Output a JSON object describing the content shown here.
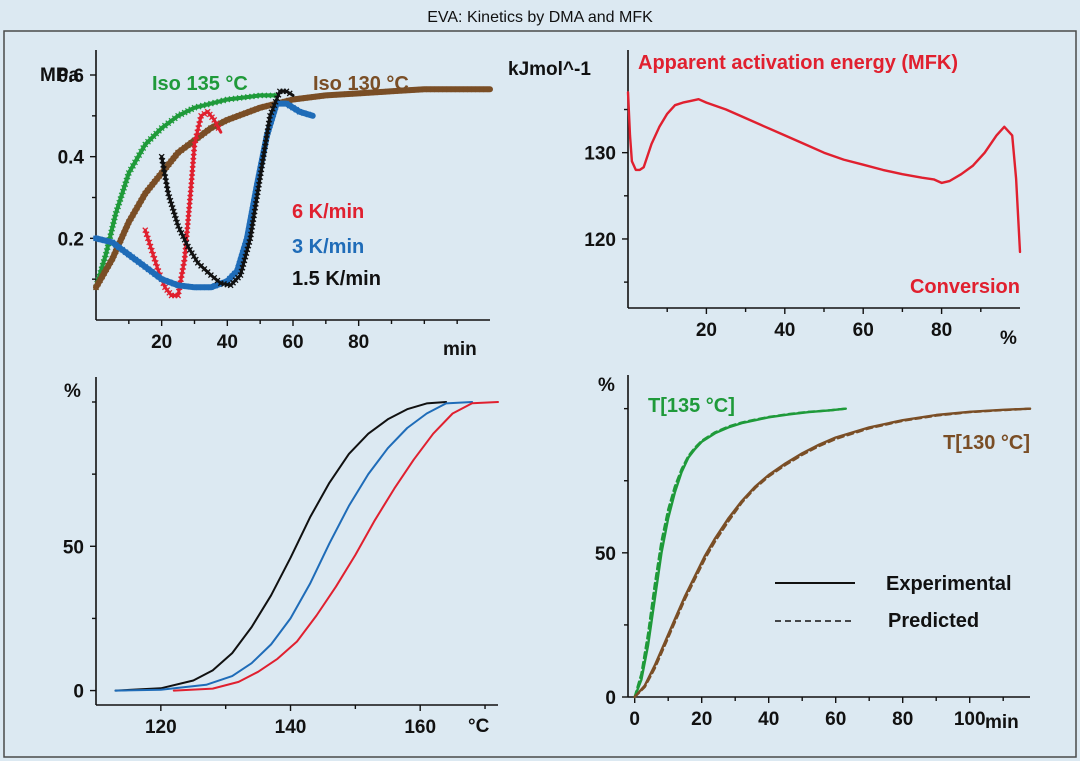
{
  "figure_title": "EVA: Kinetics by DMA and MFK",
  "colors": {
    "background": "#dce9f2",
    "frame": "#4a4a4a",
    "red": "#e0202f",
    "blue": "#1f6cb8",
    "black": "#111111",
    "green": "#1f9a3a",
    "brown": "#7a4e26"
  },
  "chart_data": [
    {
      "id": "dma",
      "type": "scatter",
      "xlabel": "min",
      "ylabel": "MPa",
      "xlim": [
        0,
        120
      ],
      "ylim": [
        0,
        0.6
      ],
      "xticks": [
        20,
        40,
        60,
        80
      ],
      "yticks": [
        0.2,
        0.4,
        0.6
      ],
      "annotations": [
        "Iso 135 °C",
        "Iso 130 °C",
        "6 K/min",
        "3 K/min",
        "1.5 K/min"
      ],
      "series": [
        {
          "name": "Iso 135 °C",
          "color": "green",
          "marker": "x",
          "x": [
            0,
            3,
            6,
            10,
            15,
            20,
            25,
            30,
            35,
            40,
            45,
            50,
            55
          ],
          "y": [
            0.08,
            0.16,
            0.26,
            0.36,
            0.43,
            0.47,
            0.5,
            0.52,
            0.53,
            0.54,
            0.545,
            0.55,
            0.55
          ]
        },
        {
          "name": "Iso 130 °C",
          "color": "brown",
          "marker": "x",
          "x": [
            0,
            5,
            10,
            15,
            20,
            25,
            30,
            35,
            40,
            50,
            60,
            70,
            80,
            90,
            100,
            110,
            120
          ],
          "y": [
            0.08,
            0.15,
            0.24,
            0.31,
            0.36,
            0.41,
            0.44,
            0.47,
            0.49,
            0.52,
            0.54,
            0.55,
            0.555,
            0.56,
            0.565,
            0.565,
            0.565
          ]
        },
        {
          "name": "6 K/min",
          "color": "red",
          "marker": "x",
          "x": [
            15,
            17,
            19,
            21,
            23,
            25,
            27,
            29,
            30,
            32,
            34,
            36,
            38
          ],
          "y": [
            0.22,
            0.17,
            0.12,
            0.08,
            0.06,
            0.06,
            0.15,
            0.33,
            0.43,
            0.5,
            0.51,
            0.49,
            0.46
          ]
        },
        {
          "name": "3 K/min",
          "color": "blue",
          "marker": "x",
          "x": [
            0,
            5,
            10,
            15,
            20,
            25,
            30,
            35,
            40,
            43,
            46,
            49,
            52,
            55,
            58,
            62,
            66
          ],
          "y": [
            0.2,
            0.19,
            0.16,
            0.13,
            0.1,
            0.085,
            0.08,
            0.08,
            0.095,
            0.12,
            0.2,
            0.33,
            0.45,
            0.53,
            0.53,
            0.51,
            0.5
          ]
        },
        {
          "name": "1.5 K/min",
          "color": "black",
          "marker": "x",
          "x": [
            20,
            22,
            25,
            28,
            31,
            35,
            38,
            41,
            44,
            47,
            50,
            53,
            56,
            58,
            60
          ],
          "y": [
            0.4,
            0.31,
            0.23,
            0.18,
            0.14,
            0.11,
            0.09,
            0.085,
            0.11,
            0.2,
            0.35,
            0.5,
            0.56,
            0.56,
            0.55
          ]
        }
      ]
    },
    {
      "id": "activation-energy",
      "type": "line",
      "title": "Apparent activation energy (MFK)",
      "xlabel": "%",
      "ylabel": "kJmol^-1",
      "bottom_label": "Conversion",
      "xlim": [
        0,
        100
      ],
      "ylim": [
        112,
        139
      ],
      "xticks": [
        20,
        40,
        60,
        80
      ],
      "yticks": [
        120,
        130
      ],
      "series": [
        {
          "name": "",
          "color": "red",
          "x": [
            0,
            0.5,
            1,
            2,
            3,
            4,
            6,
            8,
            10,
            12,
            14,
            16,
            18,
            20,
            25,
            30,
            35,
            40,
            45,
            50,
            55,
            60,
            65,
            70,
            75,
            78,
            80,
            82,
            85,
            88,
            91,
            94,
            96,
            98,
            99,
            100
          ],
          "y": [
            137,
            132,
            129,
            128,
            128,
            128.3,
            131,
            133,
            134.5,
            135.5,
            135.8,
            136,
            136.2,
            135.8,
            135,
            134,
            133,
            132,
            131,
            130,
            129.2,
            128.6,
            128,
            127.5,
            127.1,
            126.9,
            126.5,
            126.7,
            127.5,
            128.5,
            130,
            132,
            133,
            132,
            127,
            118.5
          ]
        }
      ]
    },
    {
      "id": "conversion-dynamic",
      "type": "line",
      "xlabel": "°C",
      "ylabel": "%",
      "xlim": [
        110,
        172
      ],
      "ylim": [
        -5,
        100
      ],
      "xticks": [
        120,
        140,
        160
      ],
      "yticks": [
        0,
        50
      ],
      "series": [
        {
          "name": "",
          "color": "black",
          "x": [
            113,
            120,
            125,
            128,
            131,
            134,
            137,
            140,
            143,
            146,
            149,
            152,
            155,
            158,
            161,
            164
          ],
          "y": [
            0,
            0.8,
            3.5,
            7,
            13,
            22,
            33,
            46,
            60,
            72,
            82,
            89,
            94,
            97.5,
            99.5,
            100
          ]
        },
        {
          "name": "",
          "color": "blue",
          "x": [
            113,
            120,
            127,
            131,
            134,
            137,
            140,
            143,
            146,
            149,
            152,
            155,
            158,
            161,
            164,
            168
          ],
          "y": [
            0,
            0.3,
            2,
            5,
            9.5,
            16,
            25,
            37,
            51,
            64,
            75,
            84,
            91,
            96,
            99.5,
            100
          ]
        },
        {
          "name": "",
          "color": "red",
          "x": [
            122,
            128,
            132,
            135,
            138,
            141,
            144,
            147,
            150,
            153,
            156,
            159,
            162,
            165,
            168,
            172
          ],
          "y": [
            0,
            0.7,
            3,
            6.5,
            11,
            17,
            26,
            36,
            47,
            59,
            70,
            80,
            89,
            96,
            99.6,
            100
          ]
        }
      ]
    },
    {
      "id": "conversion-isothermal",
      "type": "line",
      "xlabel": "min",
      "ylabel": "%",
      "xlim": [
        -2,
        118
      ],
      "ylim": [
        0,
        103
      ],
      "xticks": [
        0,
        20,
        40,
        60,
        80,
        100
      ],
      "yticks": [
        0,
        50
      ],
      "legend": [
        "Experimental",
        "Predicted"
      ],
      "legend_position": "lower-right",
      "annotations": [
        "T[135 °C]",
        "T[130 °C]"
      ],
      "series": [
        {
          "name": "Experimental",
          "color": "green",
          "style": "solid",
          "x": [
            0,
            2,
            4,
            6,
            8,
            10,
            12,
            14,
            16,
            18,
            20,
            24,
            28,
            32,
            36,
            40,
            46,
            52,
            58,
            63
          ],
          "y": [
            0,
            6,
            18,
            34,
            50,
            62,
            71,
            78,
            83,
            86,
            88.5,
            91.5,
            93.5,
            95,
            96,
            97,
            98,
            98.8,
            99.4,
            100
          ]
        },
        {
          "name": "Predicted",
          "color": "green",
          "style": "dashed",
          "x": [
            0,
            2,
            4,
            6,
            8,
            10,
            12,
            14,
            16,
            18,
            20,
            24,
            28,
            32,
            36,
            40,
            46,
            52,
            58,
            63
          ],
          "y": [
            0,
            8,
            22,
            39,
            54,
            65,
            73,
            79,
            83.5,
            86.5,
            88.8,
            91.8,
            93.8,
            95.2,
            96.2,
            97.1,
            98.1,
            98.9,
            99.4,
            100
          ]
        },
        {
          "name": "Experimental",
          "color": "brown",
          "style": "solid",
          "x": [
            0,
            3,
            6,
            9,
            12,
            15,
            18,
            21,
            24,
            28,
            32,
            36,
            40,
            45,
            50,
            55,
            60,
            70,
            80,
            90,
            100,
            110,
            118
          ],
          "y": [
            0,
            4,
            11,
            19,
            27,
            35,
            42,
            49,
            55,
            62,
            68,
            73,
            77,
            81,
            84.5,
            87.5,
            90,
            93.5,
            96,
            97.8,
            98.9,
            99.6,
            100
          ]
        },
        {
          "name": "Predicted",
          "color": "brown",
          "style": "dashed",
          "x": [
            0,
            3,
            6,
            9,
            12,
            15,
            18,
            21,
            24,
            28,
            32,
            36,
            40,
            45,
            50,
            55,
            60,
            70,
            80,
            90,
            100,
            110,
            118
          ],
          "y": [
            0,
            3.5,
            10,
            18,
            26,
            34,
            41,
            48,
            54,
            61,
            67.5,
            72.5,
            76.5,
            80.5,
            84,
            87,
            89.5,
            93.2,
            95.8,
            97.6,
            98.8,
            99.5,
            100
          ]
        }
      ]
    }
  ]
}
